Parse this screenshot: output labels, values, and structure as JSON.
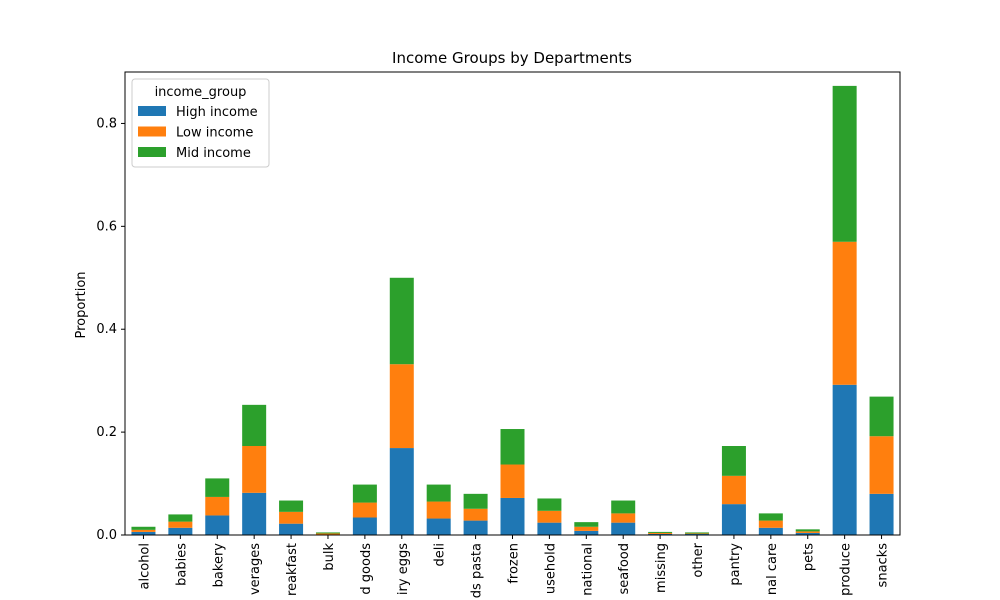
{
  "chart_data": {
    "type": "bar",
    "stacked": true,
    "title": "Income Groups by Departments",
    "xlabel": "",
    "ylabel": "Proportion",
    "ylim": [
      0,
      0.9
    ],
    "yticks": [
      0.0,
      0.2,
      0.4,
      0.6,
      0.8
    ],
    "ytick_labels": [
      "0.0",
      "0.2",
      "0.4",
      "0.6",
      "0.8"
    ],
    "legend": {
      "title": "income_group",
      "placement": "top-left"
    },
    "grid": false,
    "categories": [
      "alcohol",
      "babies",
      "bakery",
      "beverages",
      "breakfast",
      "bulk",
      "canned goods",
      "dairy eggs",
      "deli",
      "dry goods pasta",
      "frozen",
      "household",
      "international",
      "meat seafood",
      "missing",
      "other",
      "pantry",
      "personal care",
      "pets",
      "produce",
      "snacks"
    ],
    "category_labels": [
      "alcohol",
      "babies",
      "bakery",
      "verages",
      "reakfast",
      "bulk",
      "d goods",
      "iry eggs",
      "deli",
      "ds pasta",
      "frozen",
      "usehold",
      "national",
      "seafood",
      "missing",
      "other",
      "pantry",
      "nal care",
      "pets",
      "produce",
      "snacks"
    ],
    "series": [
      {
        "name": "High income",
        "color": "#1f77b4",
        "values": [
          0.006,
          0.014,
          0.038,
          0.082,
          0.022,
          0.001,
          0.034,
          0.169,
          0.032,
          0.028,
          0.072,
          0.024,
          0.008,
          0.024,
          0.002,
          0.002,
          0.06,
          0.014,
          0.004,
          0.292,
          0.08
        ]
      },
      {
        "name": "Low income",
        "color": "#ff7f0e",
        "values": [
          0.004,
          0.012,
          0.036,
          0.091,
          0.023,
          0.002,
          0.029,
          0.163,
          0.033,
          0.023,
          0.065,
          0.023,
          0.008,
          0.018,
          0.002,
          0.001,
          0.055,
          0.014,
          0.003,
          0.278,
          0.112
        ]
      },
      {
        "name": "Mid income",
        "color": "#2ca02c",
        "values": [
          0.006,
          0.014,
          0.036,
          0.08,
          0.022,
          0.002,
          0.035,
          0.168,
          0.033,
          0.029,
          0.069,
          0.024,
          0.009,
          0.025,
          0.002,
          0.002,
          0.058,
          0.014,
          0.004,
          0.303,
          0.077
        ]
      }
    ]
  }
}
